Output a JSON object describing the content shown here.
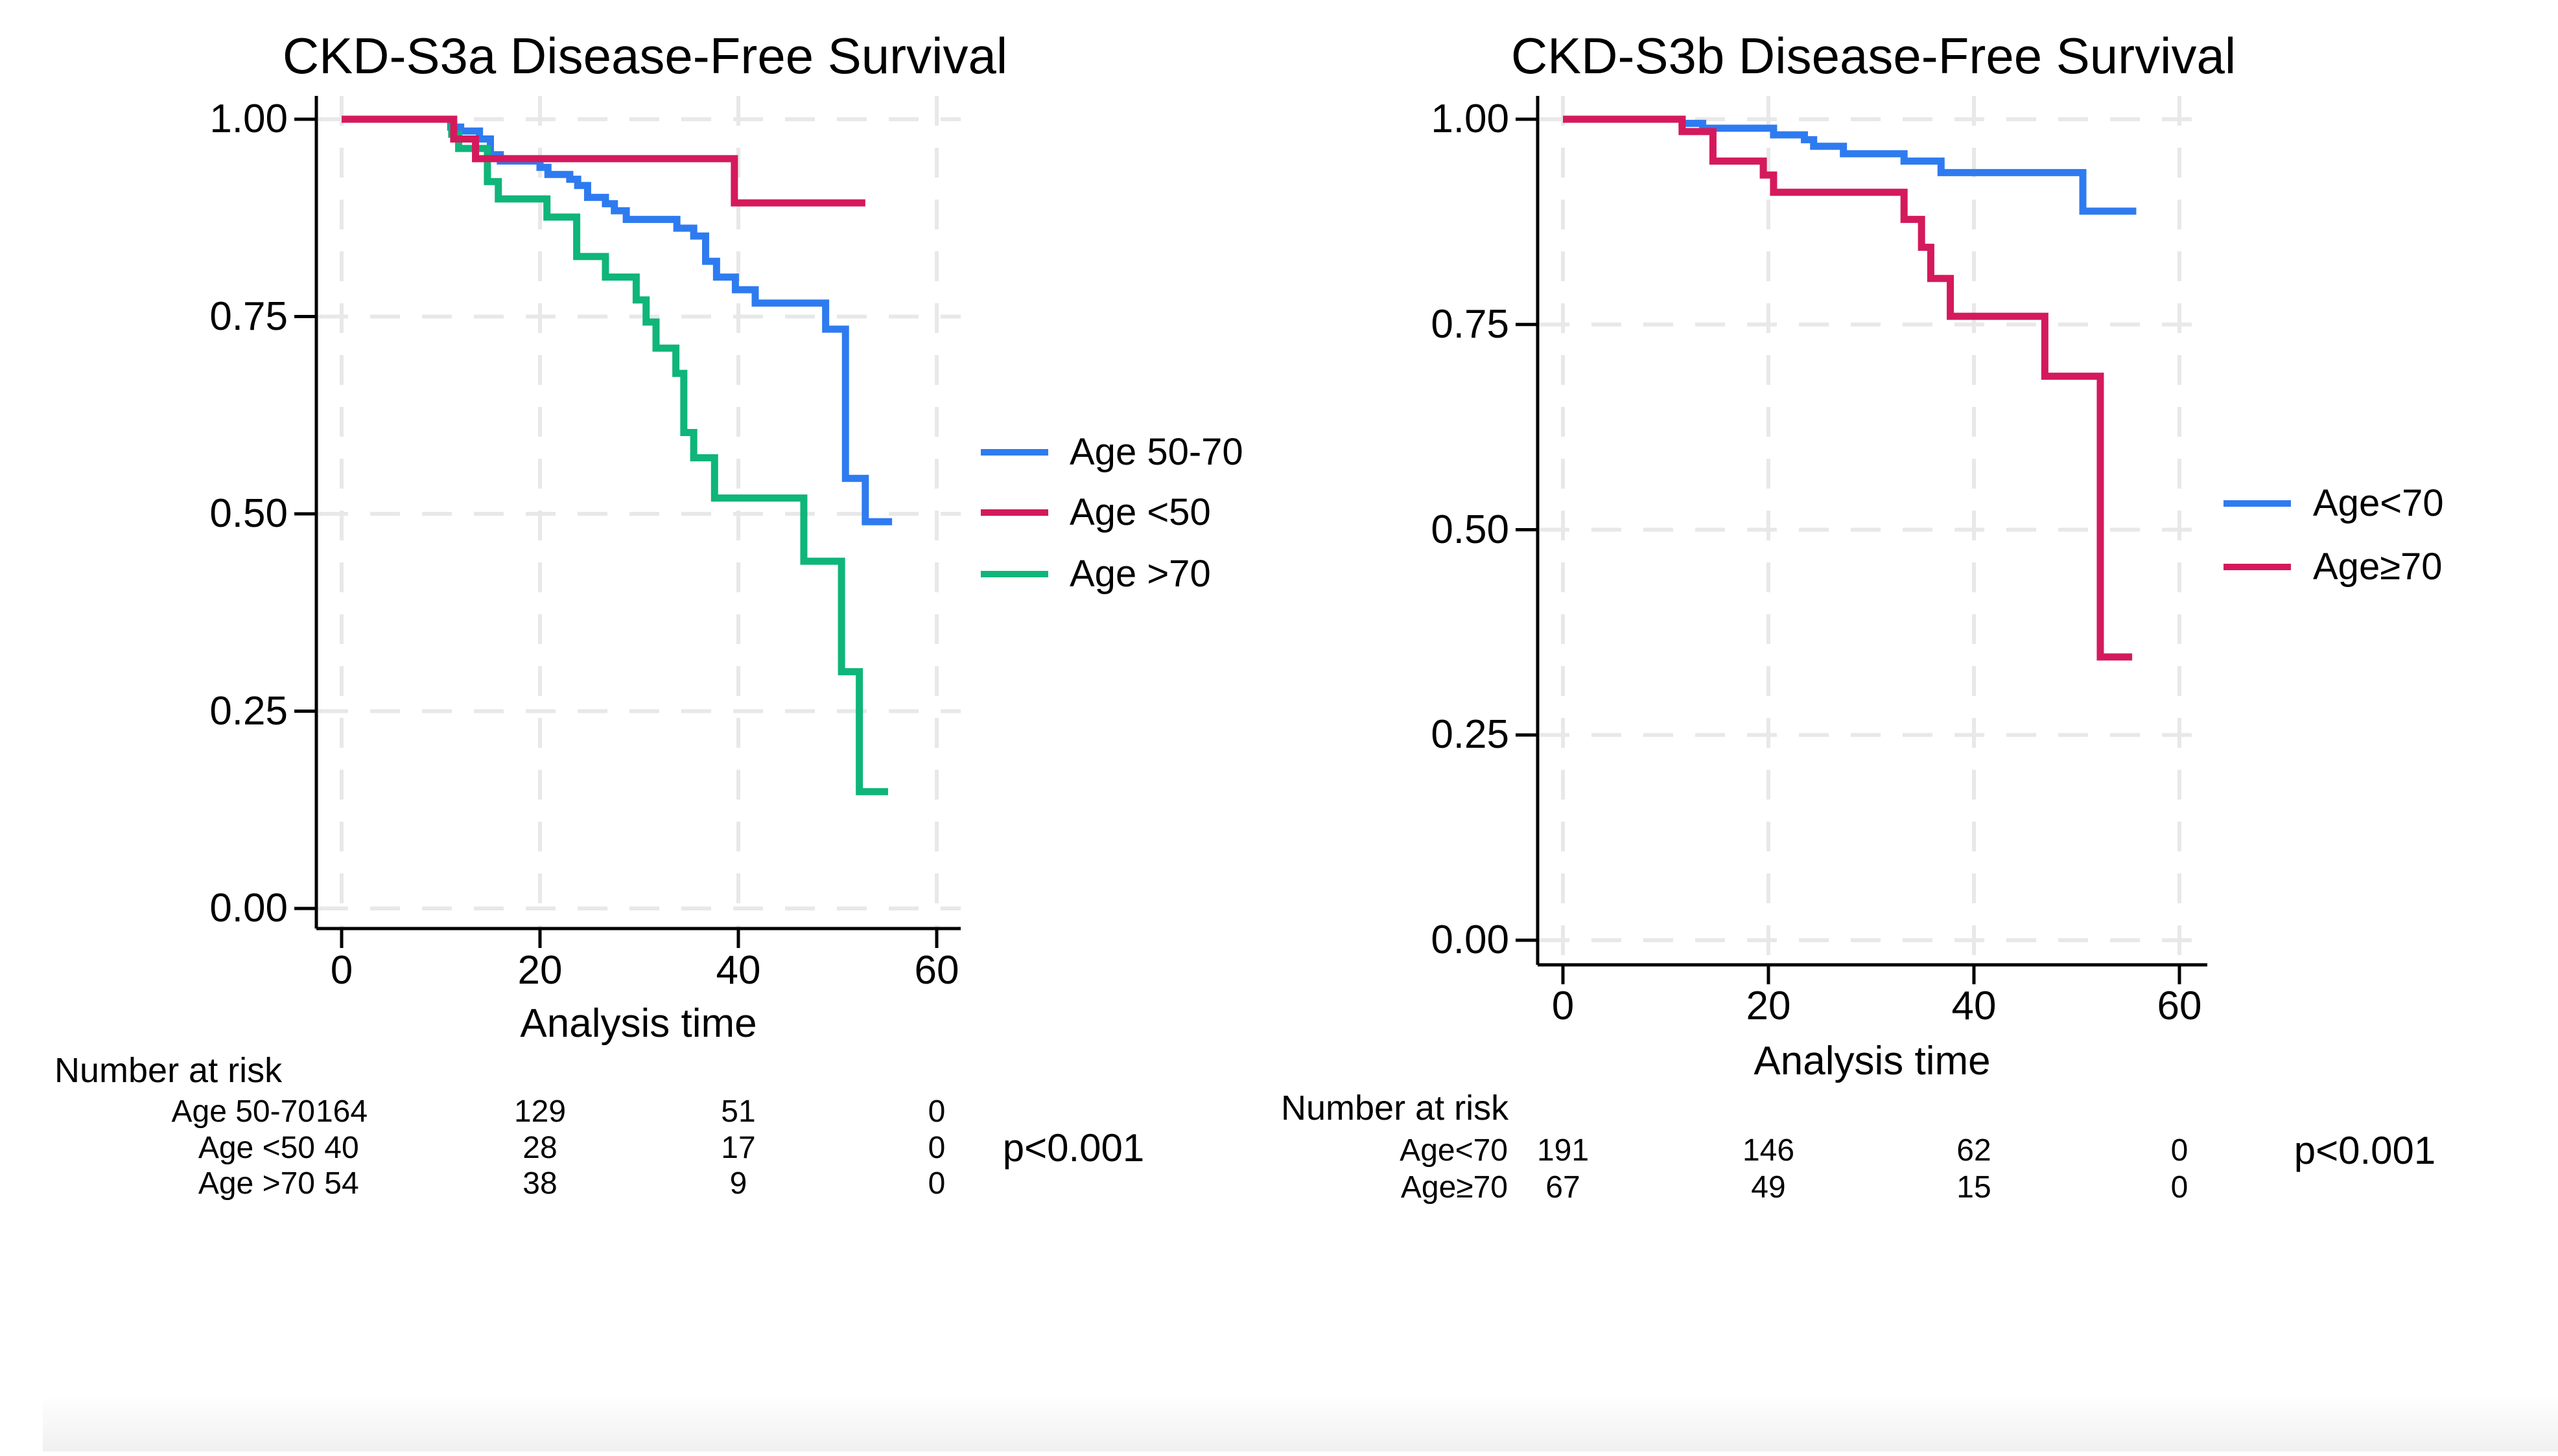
{
  "colors": {
    "blue": "#2E7BF0",
    "red": "#D41A5C",
    "green": "#0FB579",
    "axis": "#000000",
    "gridline": "#e8e8e8"
  },
  "chart_data": [
    {
      "type": "line",
      "step": true,
      "title": "CKD-S3a Disease-Free Survival",
      "xlabel": "Analysis time",
      "ylabel": "",
      "xlim": [
        0,
        63
      ],
      "ylim": [
        0,
        1
      ],
      "grid": true,
      "legend_position": "right",
      "xticks": [
        0,
        20,
        40,
        60
      ],
      "yticks": [
        "1.00",
        "0.75",
        "0.50",
        "0.25",
        "0.00"
      ],
      "risk_header": "Number at risk",
      "p_value": "p<0.001",
      "series": [
        {
          "label": "Age 50-70",
          "color": "blue",
          "z": 1,
          "end_time": 55.5,
          "points": [
            [
              0,
              1.0
            ],
            [
              11,
              0.99
            ],
            [
              12,
              0.985
            ],
            [
              13.9,
              0.975
            ],
            [
              15,
              0.955
            ],
            [
              16,
              0.947
            ],
            [
              20,
              0.939
            ],
            [
              20.8,
              0.93
            ],
            [
              23,
              0.924
            ],
            [
              23.8,
              0.916
            ],
            [
              24.8,
              0.901
            ],
            [
              26.6,
              0.893
            ],
            [
              27.5,
              0.884
            ],
            [
              28.7,
              0.873
            ],
            [
              33.8,
              0.862
            ],
            [
              35.5,
              0.852
            ],
            [
              36.7,
              0.82
            ],
            [
              37.8,
              0.8
            ],
            [
              39.7,
              0.784
            ],
            [
              41.7,
              0.767
            ],
            [
              48.8,
              0.734
            ],
            [
              50.8,
              0.545
            ],
            [
              52.8,
              0.49
            ]
          ]
        },
        {
          "label": "Age <50",
          "color": "red",
          "z": 3,
          "end_time": 52.8,
          "points": [
            [
              0,
              1.0
            ],
            [
              11.3,
              0.975
            ],
            [
              13.5,
              0.95
            ],
            [
              39.6,
              0.894
            ]
          ]
        },
        {
          "label": "Age >70",
          "color": "green",
          "z": 2,
          "end_time": 55.1,
          "points": [
            [
              0,
              1.0
            ],
            [
              11.1,
              0.981
            ],
            [
              11.8,
              0.963
            ],
            [
              14.7,
              0.921
            ],
            [
              15.8,
              0.899
            ],
            [
              20.7,
              0.876
            ],
            [
              23.7,
              0.826
            ],
            [
              26.6,
              0.8
            ],
            [
              29.7,
              0.771
            ],
            [
              30.7,
              0.743
            ],
            [
              31.7,
              0.71
            ],
            [
              33.7,
              0.678
            ],
            [
              34.5,
              0.603
            ],
            [
              35.5,
              0.571
            ],
            [
              37.6,
              0.52
            ],
            [
              46.6,
              0.44
            ],
            [
              50.4,
              0.3
            ],
            [
              52.2,
              0.148
            ]
          ]
        }
      ],
      "risk_rows": [
        {
          "label": "Age 50-70",
          "counts": [
            164,
            129,
            51,
            0
          ]
        },
        {
          "label": "Age <50",
          "counts": [
            40,
            28,
            17,
            0
          ]
        },
        {
          "label": "Age >70",
          "counts": [
            54,
            38,
            9,
            0
          ]
        }
      ]
    },
    {
      "type": "line",
      "step": true,
      "title": "CKD-S3b Disease-Free Survival",
      "xlabel": "Analysis time",
      "ylabel": "",
      "xlim": [
        0,
        63
      ],
      "ylim": [
        0,
        1
      ],
      "grid": true,
      "legend_position": "right",
      "xticks": [
        0,
        20,
        40,
        60
      ],
      "yticks": [
        "1.00",
        "0.75",
        "0.50",
        "0.25",
        "0.00"
      ],
      "risk_header": "Number at risk",
      "p_value": "p<0.001",
      "series": [
        {
          "label": "Age<70",
          "color": "blue",
          "z": 1,
          "end_time": 55.8,
          "points": [
            [
              0,
              1.0
            ],
            [
              11.6,
              0.995
            ],
            [
              13.6,
              0.989
            ],
            [
              20.5,
              0.981
            ],
            [
              23.5,
              0.975
            ],
            [
              24.4,
              0.967
            ],
            [
              27.3,
              0.958
            ],
            [
              33.2,
              0.949
            ],
            [
              36.8,
              0.935
            ],
            [
              50.6,
              0.888
            ]
          ]
        },
        {
          "label": "Age≥70",
          "color": "red",
          "z": 2,
          "end_time": 55.4,
          "points": [
            [
              0,
              1.0
            ],
            [
              11.6,
              0.985
            ],
            [
              14.6,
              0.949
            ],
            [
              19.5,
              0.932
            ],
            [
              20.5,
              0.911
            ],
            [
              33.2,
              0.878
            ],
            [
              34.9,
              0.844
            ],
            [
              35.8,
              0.806
            ],
            [
              37.7,
              0.76
            ],
            [
              46.9,
              0.687
            ],
            [
              52.3,
              0.345
            ]
          ]
        }
      ],
      "risk_rows": [
        {
          "label": "Age<70",
          "counts": [
            191,
            146,
            62,
            0
          ]
        },
        {
          "label": "Age≥70",
          "counts": [
            67,
            49,
            15,
            0
          ]
        }
      ]
    }
  ]
}
